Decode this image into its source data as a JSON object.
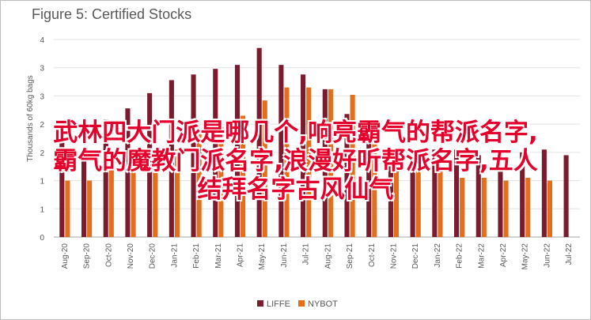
{
  "chart_data": {
    "type": "bar",
    "title": "Figure 5: Certified Stocks",
    "ylabel": "Thousands of 60kg bags",
    "xlabel": "",
    "ylim": [
      0,
      3.5
    ],
    "yticks": [
      0,
      0.5,
      1,
      1.5,
      2,
      2.5,
      3,
      3.5
    ],
    "ytick_labels": [
      "0",
      "1",
      "1",
      "2",
      "2",
      "3",
      "3",
      "4"
    ],
    "grid": true,
    "legend_position": "bottom",
    "categories": [
      "Aug-20",
      "Sep-20",
      "Oct-20",
      "Nov-20",
      "Dec-20",
      "Jan-21",
      "Feb-21",
      "Mar-21",
      "Apr-21",
      "May-21",
      "Jun-21",
      "Jul-21",
      "Aug-21",
      "Sep-21",
      "Oct-21",
      "Nov-21",
      "Dec-21",
      "Jan-22",
      "Feb-22",
      "Mar-22",
      "Apr-22",
      "May-22",
      "Jun-22",
      "Jul-22"
    ],
    "xtick_labels": [
      "Aug-20",
      "Sep-20",
      "Oct-20",
      "Nov-20",
      "Dec-20",
      "Jan-21",
      "Feb-21",
      "Mar-21",
      "Apr-21",
      "May-21",
      "Jun-21",
      "Jul-21",
      "Aug-21",
      "Sep-21",
      "Oct-21",
      "Nov-21",
      "Dec-21",
      "Jan-22",
      "Feb-22",
      "Mar-22",
      "Apr-22",
      "May-22",
      "Jun-22",
      "Jul-22"
    ],
    "series": [
      {
        "name": "LIFFE",
        "color": "#7b1c2e",
        "values": [
          1.72,
          1.55,
          2.08,
          2.28,
          2.55,
          2.78,
          2.88,
          2.98,
          3.05,
          3.35,
          3.05,
          2.88,
          2.62,
          2.18,
          1.95,
          1.55,
          1.45,
          1.55,
          1.55,
          1.45,
          1.2,
          1.5,
          1.55,
          1.45
        ]
      },
      {
        "name": "NYBOT",
        "color": "#e36f1e",
        "values": [
          1.0,
          1.0,
          1.2,
          1.5,
          1.45,
          1.55,
          1.85,
          1.95,
          2.15,
          2.42,
          2.65,
          2.65,
          2.62,
          2.52,
          2.02,
          1.25,
          1.3,
          1.2,
          1.05,
          1.05,
          1.0,
          1.05,
          1.0,
          null
        ]
      }
    ]
  },
  "overlay": {
    "line1": "武林四大门派是哪几个,响亮霸气的帮派名字,",
    "line2": "霸气的魔教门派名字,浪漫好听帮派名字,五人",
    "line3": "结拜名字古风仙气"
  }
}
